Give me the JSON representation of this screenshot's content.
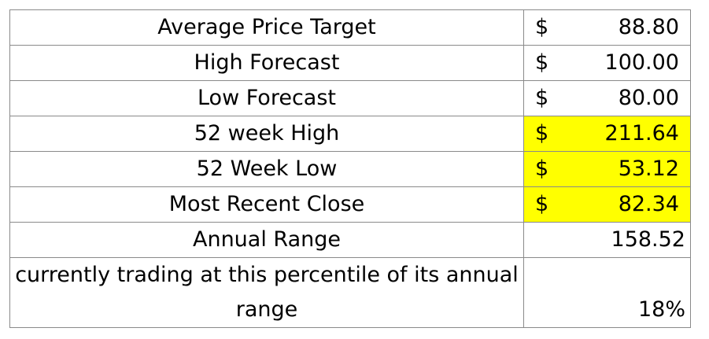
{
  "rows": [
    {
      "label": "Average Price Target",
      "currency": "$",
      "value": "88.80"
    },
    {
      "label": "High Forecast",
      "currency": "$",
      "value": "100.00"
    },
    {
      "label": "Low Forecast",
      "currency": "$",
      "value": "80.00"
    },
    {
      "label": "52 week High",
      "currency": "$",
      "value": "211.64"
    },
    {
      "label": "52 Week Low",
      "currency": "$",
      "value": "53.12"
    },
    {
      "label": "Most Recent Close",
      "currency": "$",
      "value": "82.34"
    },
    {
      "label": "Annual Range",
      "value": "158.52"
    },
    {
      "label": "currently trading at this percentile of its annual range",
      "value": "18%"
    }
  ],
  "highlight_color": "#ffff00"
}
